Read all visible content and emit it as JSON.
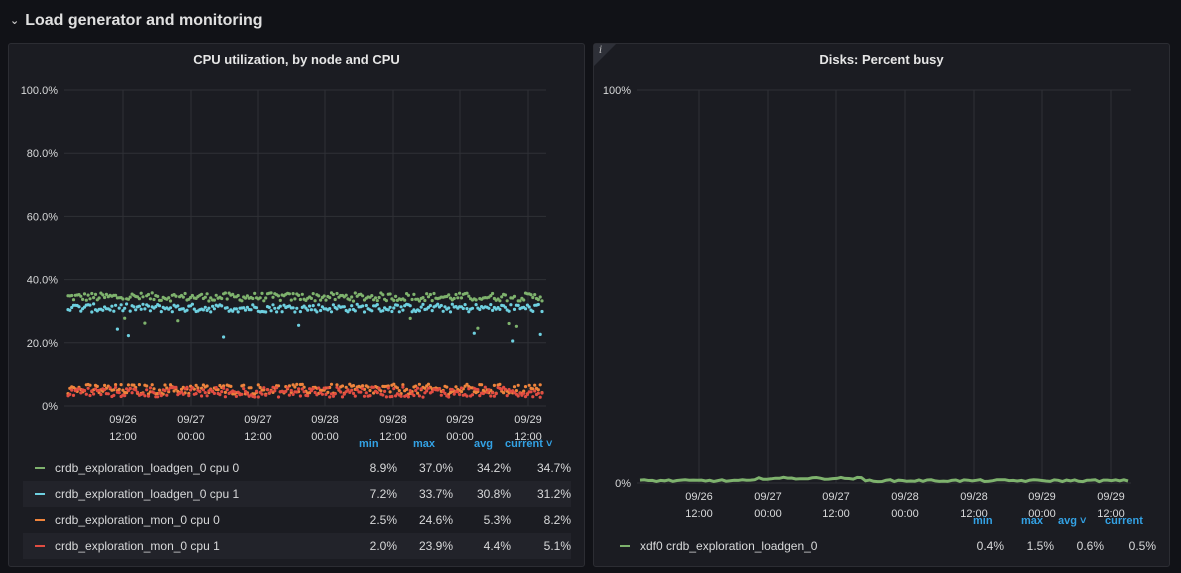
{
  "row": {
    "title": "Load generator and monitoring"
  },
  "panels": [
    {
      "title": "CPU utilization, by node and CPU",
      "legend_headers": [
        "min",
        "max",
        "avg",
        "current"
      ],
      "series": [
        {
          "name": "crdb_exploration_loadgen_0 cpu 0",
          "color": "#7eb26d",
          "min": "8.9%",
          "max": "37.0%",
          "avg": "34.2%",
          "current": "34.7%"
        },
        {
          "name": "crdb_exploration_loadgen_0 cpu 1",
          "color": "#6ed0e0",
          "min": "7.2%",
          "max": "33.7%",
          "avg": "30.8%",
          "current": "31.2%"
        },
        {
          "name": "crdb_exploration_mon_0 cpu 0",
          "color": "#ef843c",
          "min": "2.5%",
          "max": "24.6%",
          "avg": "5.3%",
          "current": "8.2%"
        },
        {
          "name": "crdb_exploration_mon_0 cpu 1",
          "color": "#e24d42",
          "min": "2.0%",
          "max": "23.9%",
          "avg": "4.4%",
          "current": "5.1%"
        }
      ]
    },
    {
      "title": "Disks: Percent busy",
      "info_icon": "info-icon",
      "legend_headers": [
        "min",
        "max",
        "avg",
        "current"
      ],
      "series": [
        {
          "name": "xdf0 crdb_exploration_loadgen_0",
          "color": "#7eb26d",
          "min": "0.4%",
          "max": "1.5%",
          "avg": "0.6%",
          "current": "0.5%"
        }
      ]
    }
  ],
  "chart_data": [
    {
      "type": "scatter",
      "title": "CPU utilization, by node and CPU",
      "y_ticks": [
        "0%",
        "20.0%",
        "40.0%",
        "60.0%",
        "80.0%",
        "100.0%"
      ],
      "ylim": [
        0,
        100
      ],
      "x_ticks": [
        [
          "09/26",
          "12:00"
        ],
        [
          "09/27",
          "00:00"
        ],
        [
          "09/27",
          "12:00"
        ],
        [
          "09/28",
          "00:00"
        ],
        [
          "09/28",
          "12:00"
        ],
        [
          "09/29",
          "00:00"
        ],
        [
          "09/29",
          "12:00"
        ]
      ],
      "series": [
        {
          "name": "crdb_exploration_loadgen_0 cpu 0",
          "level": 34.5
        },
        {
          "name": "crdb_exploration_loadgen_0 cpu 1",
          "level": 31
        },
        {
          "name": "crdb_exploration_mon_0 cpu 0",
          "level": 5.3
        },
        {
          "name": "crdb_exploration_mon_0 cpu 1",
          "level": 4.4
        }
      ]
    },
    {
      "type": "line",
      "title": "Disks: Percent busy",
      "y_ticks": [
        "0%",
        "100%"
      ],
      "ylim": [
        0,
        100
      ],
      "x_ticks": [
        [
          "09/26",
          "12:00"
        ],
        [
          "09/27",
          "00:00"
        ],
        [
          "09/27",
          "12:00"
        ],
        [
          "09/28",
          "00:00"
        ],
        [
          "09/28",
          "12:00"
        ],
        [
          "09/29",
          "00:00"
        ],
        [
          "09/29",
          "12:00"
        ]
      ],
      "series": [
        {
          "name": "xdf0 crdb_exploration_loadgen_0",
          "level": 0.6
        }
      ]
    }
  ]
}
